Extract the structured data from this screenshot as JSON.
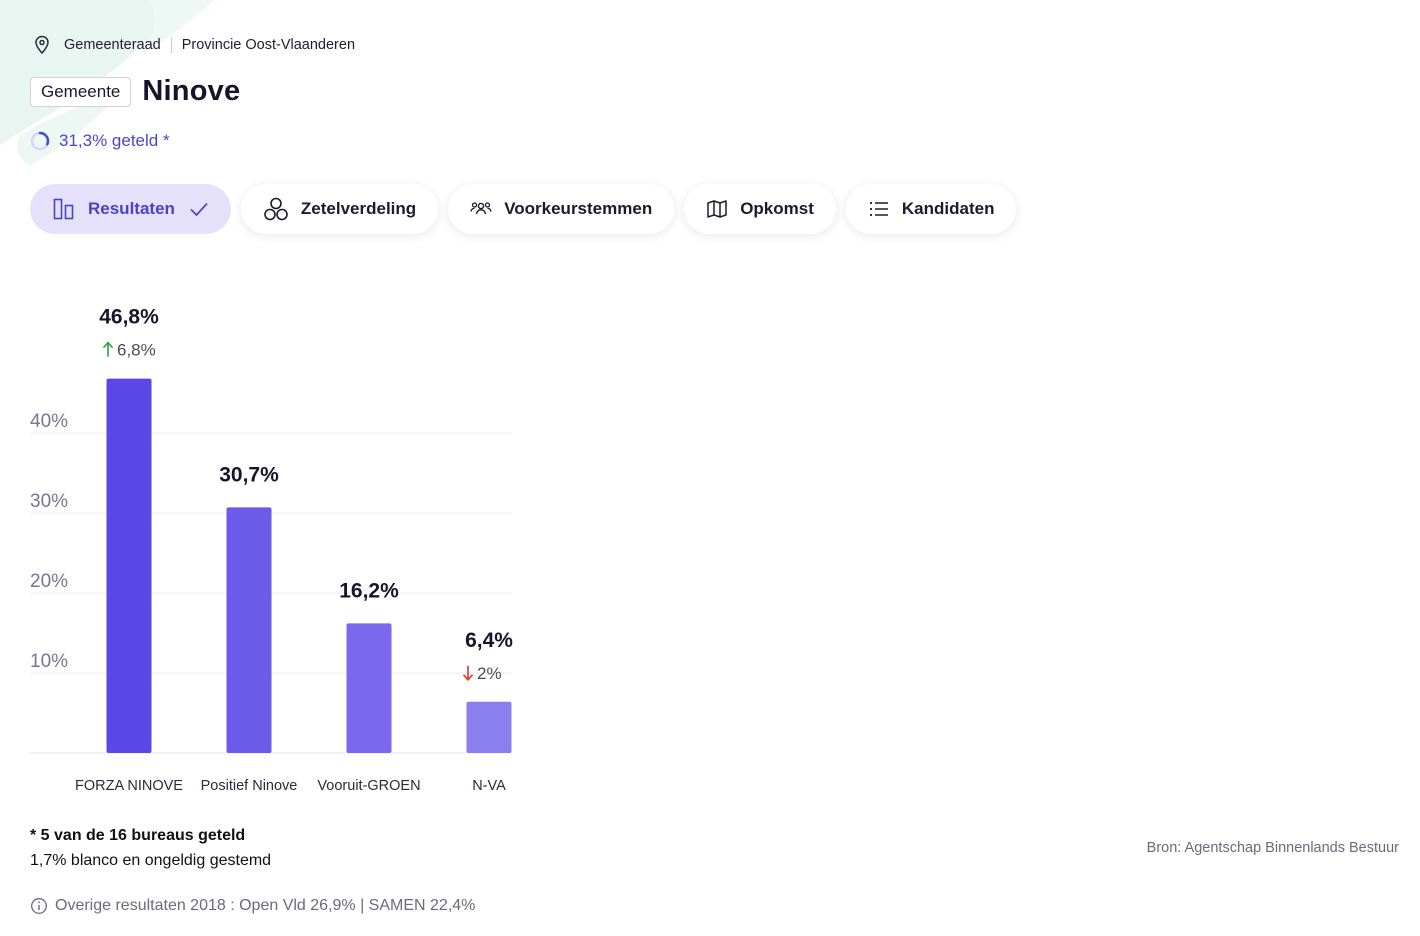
{
  "breadcrumb": {
    "council": "Gemeenteraad",
    "province": "Provincie Oost-Vlaanderen"
  },
  "header": {
    "type_badge": "Gemeente",
    "title": "Ninove"
  },
  "progress": {
    "label": "31,3% geteld *",
    "fraction": 0.313
  },
  "tabs": [
    {
      "label": "Resultaten",
      "icon": "bar-chart-icon",
      "active": true
    },
    {
      "label": "Zetelverdeling",
      "icon": "seats-icon",
      "active": false
    },
    {
      "label": "Voorkeurstemmen",
      "icon": "people-icon",
      "active": false
    },
    {
      "label": "Opkomst",
      "icon": "map-icon",
      "active": false
    },
    {
      "label": "Kandidaten",
      "icon": "list-icon",
      "active": false
    }
  ],
  "chart_data": {
    "type": "bar",
    "categories": [
      "FORZA NINOVE",
      "Positief Ninove",
      "Vooruit-GROEN",
      "N-VA"
    ],
    "values": [
      46.8,
      30.7,
      16.2,
      6.4
    ],
    "value_labels": [
      "46,8%",
      "30,7%",
      "16,2%",
      "6,4%"
    ],
    "changes": [
      {
        "direction": "up",
        "label": "6,8%"
      },
      null,
      null,
      {
        "direction": "down",
        "label": "2%"
      }
    ],
    "ylim": [
      0,
      40
    ],
    "yticks": [
      10,
      20,
      30,
      40
    ],
    "ytick_labels": [
      "10%",
      "20%",
      "30%",
      "40%"
    ],
    "grid": true,
    "colors": [
      "#5b47e8",
      "#6c5ae9",
      "#7a69ec",
      "#8b7ff0"
    ],
    "up_color": "#2e9e47",
    "down_color": "#d93a2b"
  },
  "footnotes": {
    "counted": "* 5 van de 16 bureaus geteld",
    "blank": "1,7% blanco en ongeldig gestemd"
  },
  "info": {
    "text": "Overige resultaten 2018 : Open Vld 26,9% | SAMEN 22,4%"
  },
  "source": "Bron: Agentschap Binnenlands Bestuur"
}
